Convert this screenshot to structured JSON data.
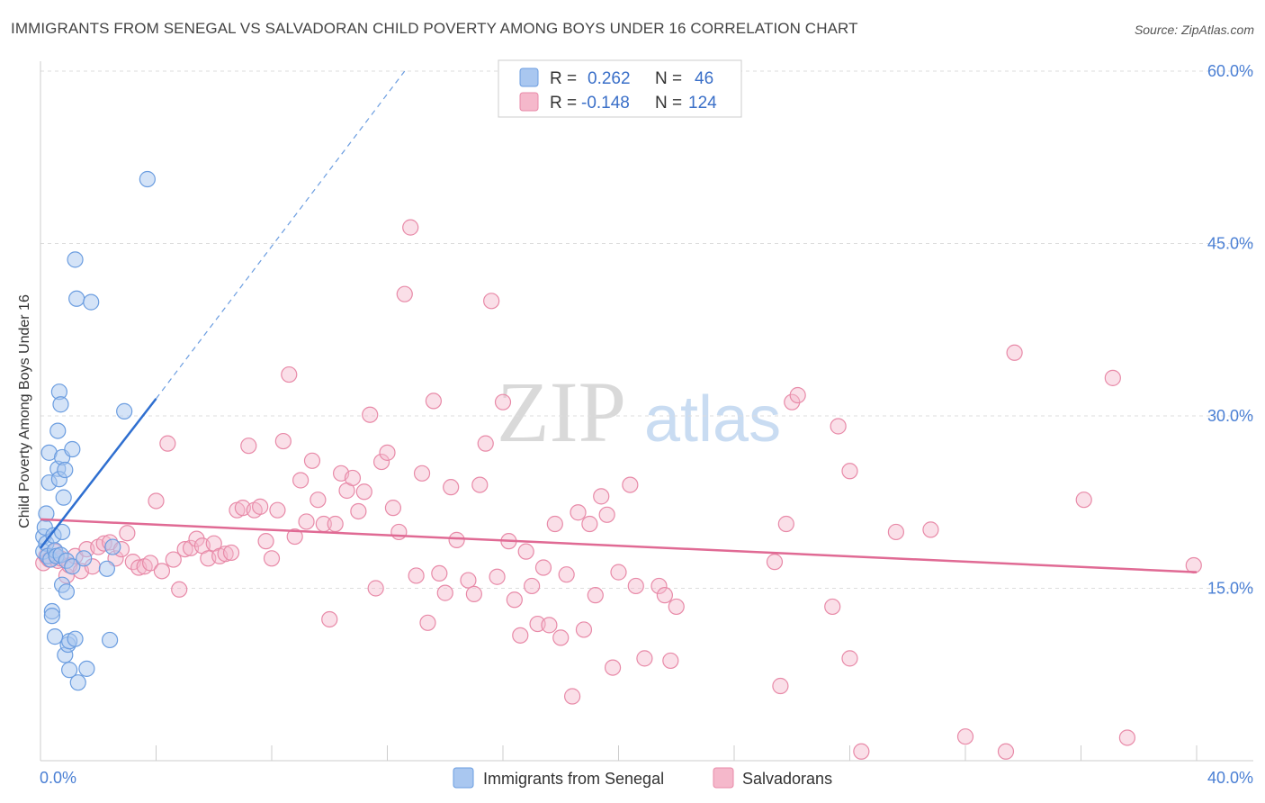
{
  "header": {
    "title": "IMMIGRANTS FROM SENEGAL VS SALVADORAN CHILD POVERTY AMONG BOYS UNDER 16 CORRELATION CHART",
    "source": "Source: ZipAtlas.com"
  },
  "watermark": {
    "zip": "ZIP",
    "atlas": "atlas"
  },
  "legend": {
    "rows": [
      {
        "r_label": "R =",
        "r_value": "0.262",
        "n_label": "N =",
        "n_value": "46"
      },
      {
        "r_label": "R =",
        "r_value": "-0.148",
        "n_label": "N =",
        "n_value": "124"
      }
    ]
  },
  "bottom_legend": {
    "items": [
      {
        "label": "Immigrants from Senegal"
      },
      {
        "label": "Salvadorans"
      }
    ]
  },
  "colors": {
    "blue_fill": "#a9c7f0",
    "blue_stroke": "#6b9de0",
    "blue_line": "#2f6fd0",
    "pink_fill": "#f5b8cb",
    "pink_stroke": "#e88aa8",
    "pink_line": "#e06a94",
    "grid": "#dddddd",
    "tick_text": "#4a7fd4"
  },
  "chart_data": {
    "type": "scatter",
    "title": "IMMIGRANTS FROM SENEGAL VS SALVADORAN CHILD POVERTY AMONG BOYS UNDER 16 CORRELATION CHART",
    "xlabel": "",
    "ylabel": "Child Poverty Among Boys Under 16",
    "xlim": [
      0,
      40
    ],
    "ylim": [
      0,
      60
    ],
    "x_tick_labels": [
      "0.0%",
      "40.0%"
    ],
    "y_ticks": [
      {
        "value": 15,
        "label": "15.0%"
      },
      {
        "value": 30,
        "label": "30.0%"
      },
      {
        "value": 45,
        "label": "45.0%"
      },
      {
        "value": 60,
        "label": "60.0%"
      }
    ],
    "series": [
      {
        "name": "Immigrants from Senegal",
        "R": 0.262,
        "N": 46,
        "trend": {
          "x0": 0,
          "y0": 18.5,
          "x1": 4.0,
          "y1": 31.5,
          "dash_to_x": 12.6,
          "dash_to_y": 60.0
        },
        "points": [
          [
            0.1,
            18.2
          ],
          [
            0.1,
            19.5
          ],
          [
            0.15,
            20.3
          ],
          [
            0.2,
            21.5
          ],
          [
            0.2,
            18.9
          ],
          [
            0.25,
            17.8
          ],
          [
            0.3,
            24.2
          ],
          [
            0.3,
            26.8
          ],
          [
            0.35,
            17.5
          ],
          [
            0.4,
            13.0
          ],
          [
            0.4,
            12.6
          ],
          [
            0.45,
            19.6
          ],
          [
            0.5,
            18.3
          ],
          [
            0.5,
            10.8
          ],
          [
            0.55,
            17.8
          ],
          [
            0.6,
            28.7
          ],
          [
            0.6,
            25.4
          ],
          [
            0.65,
            24.5
          ],
          [
            0.65,
            32.1
          ],
          [
            0.7,
            31.0
          ],
          [
            0.7,
            17.9
          ],
          [
            0.75,
            19.9
          ],
          [
            0.75,
            15.3
          ],
          [
            0.75,
            26.4
          ],
          [
            0.8,
            22.9
          ],
          [
            0.85,
            25.3
          ],
          [
            0.85,
            9.2
          ],
          [
            0.9,
            17.4
          ],
          [
            0.9,
            14.7
          ],
          [
            0.95,
            10.1
          ],
          [
            1.0,
            10.4
          ],
          [
            1.0,
            7.9
          ],
          [
            1.1,
            27.1
          ],
          [
            1.1,
            16.9
          ],
          [
            1.2,
            43.6
          ],
          [
            1.2,
            10.6
          ],
          [
            1.25,
            40.2
          ],
          [
            1.3,
            6.8
          ],
          [
            1.6,
            8.0
          ],
          [
            1.75,
            39.9
          ],
          [
            2.3,
            16.7
          ],
          [
            2.4,
            10.5
          ],
          [
            2.5,
            18.6
          ],
          [
            2.9,
            30.4
          ],
          [
            3.7,
            50.6
          ],
          [
            1.5,
            17.6
          ]
        ]
      },
      {
        "name": "Salvadorans",
        "R": -0.148,
        "N": 124,
        "trend": {
          "x0": 0,
          "y0": 21.0,
          "x1": 40,
          "y1": 16.4
        },
        "points": [
          [
            0.1,
            17.2
          ],
          [
            0.2,
            17.8
          ],
          [
            0.3,
            17.5
          ],
          [
            0.5,
            18.2
          ],
          [
            0.6,
            17.4
          ],
          [
            0.7,
            17.6
          ],
          [
            0.9,
            16.1
          ],
          [
            1.0,
            17.0
          ],
          [
            1.2,
            17.8
          ],
          [
            1.4,
            16.5
          ],
          [
            1.6,
            18.4
          ],
          [
            1.8,
            16.9
          ],
          [
            2.0,
            18.6
          ],
          [
            2.2,
            18.9
          ],
          [
            2.4,
            19.0
          ],
          [
            2.6,
            17.6
          ],
          [
            2.8,
            18.4
          ],
          [
            3.0,
            19.8
          ],
          [
            3.2,
            17.3
          ],
          [
            3.4,
            16.8
          ],
          [
            3.6,
            16.9
          ],
          [
            3.8,
            17.2
          ],
          [
            4.0,
            22.6
          ],
          [
            4.2,
            16.5
          ],
          [
            4.4,
            27.6
          ],
          [
            4.6,
            17.5
          ],
          [
            4.8,
            14.9
          ],
          [
            5.0,
            18.4
          ],
          [
            5.2,
            18.5
          ],
          [
            5.4,
            19.3
          ],
          [
            5.6,
            18.7
          ],
          [
            5.8,
            17.6
          ],
          [
            6.0,
            18.9
          ],
          [
            6.2,
            17.8
          ],
          [
            6.4,
            18.0
          ],
          [
            6.6,
            18.1
          ],
          [
            6.8,
            21.8
          ],
          [
            7.0,
            22.0
          ],
          [
            7.2,
            27.4
          ],
          [
            7.4,
            21.8
          ],
          [
            7.6,
            22.1
          ],
          [
            7.8,
            19.1
          ],
          [
            8.0,
            17.6
          ],
          [
            8.2,
            21.8
          ],
          [
            8.4,
            27.8
          ],
          [
            8.6,
            33.6
          ],
          [
            8.8,
            19.5
          ],
          [
            9.0,
            24.4
          ],
          [
            9.2,
            20.8
          ],
          [
            9.4,
            26.1
          ],
          [
            9.6,
            22.7
          ],
          [
            9.8,
            20.6
          ],
          [
            10.0,
            12.3
          ],
          [
            10.2,
            20.6
          ],
          [
            10.4,
            25.0
          ],
          [
            10.6,
            23.5
          ],
          [
            10.8,
            24.6
          ],
          [
            11.0,
            21.7
          ],
          [
            11.2,
            23.4
          ],
          [
            11.4,
            30.1
          ],
          [
            11.6,
            15.0
          ],
          [
            11.8,
            26.0
          ],
          [
            12.0,
            26.8
          ],
          [
            12.2,
            22.0
          ],
          [
            12.4,
            19.9
          ],
          [
            12.6,
            40.6
          ],
          [
            12.8,
            46.4
          ],
          [
            13.0,
            16.1
          ],
          [
            13.2,
            25.0
          ],
          [
            13.4,
            12.0
          ],
          [
            13.6,
            31.3
          ],
          [
            13.8,
            16.3
          ],
          [
            14.0,
            14.6
          ],
          [
            14.2,
            23.8
          ],
          [
            14.4,
            19.2
          ],
          [
            14.8,
            15.7
          ],
          [
            15.0,
            14.5
          ],
          [
            15.2,
            24.0
          ],
          [
            15.4,
            27.6
          ],
          [
            15.6,
            40.0
          ],
          [
            15.8,
            16.0
          ],
          [
            16.0,
            31.2
          ],
          [
            16.2,
            19.1
          ],
          [
            16.4,
            14.0
          ],
          [
            16.6,
            10.9
          ],
          [
            16.8,
            18.2
          ],
          [
            17.0,
            15.2
          ],
          [
            17.2,
            11.9
          ],
          [
            17.4,
            16.8
          ],
          [
            17.6,
            11.8
          ],
          [
            17.8,
            20.6
          ],
          [
            18.0,
            10.7
          ],
          [
            18.2,
            16.2
          ],
          [
            18.4,
            5.6
          ],
          [
            18.6,
            21.6
          ],
          [
            18.8,
            11.4
          ],
          [
            19.0,
            20.6
          ],
          [
            19.2,
            14.4
          ],
          [
            19.4,
            23.0
          ],
          [
            19.6,
            21.4
          ],
          [
            19.8,
            8.1
          ],
          [
            20.0,
            16.4
          ],
          [
            20.4,
            24.0
          ],
          [
            20.6,
            15.2
          ],
          [
            20.9,
            8.9
          ],
          [
            21.4,
            15.2
          ],
          [
            21.6,
            14.4
          ],
          [
            21.8,
            8.7
          ],
          [
            22.0,
            13.4
          ],
          [
            25.4,
            17.3
          ],
          [
            25.6,
            6.5
          ],
          [
            25.8,
            20.6
          ],
          [
            26.0,
            31.2
          ],
          [
            26.2,
            31.8
          ],
          [
            27.4,
            13.4
          ],
          [
            27.6,
            29.1
          ],
          [
            28.0,
            25.2
          ],
          [
            28.0,
            8.9
          ],
          [
            28.4,
            0.8
          ],
          [
            29.6,
            19.9
          ],
          [
            30.8,
            20.1
          ],
          [
            32.0,
            2.1
          ],
          [
            33.4,
            0.8
          ],
          [
            33.7,
            35.5
          ],
          [
            36.1,
            22.7
          ],
          [
            37.1,
            33.3
          ],
          [
            37.6,
            2.0
          ],
          [
            39.9,
            17.0
          ]
        ]
      }
    ]
  }
}
